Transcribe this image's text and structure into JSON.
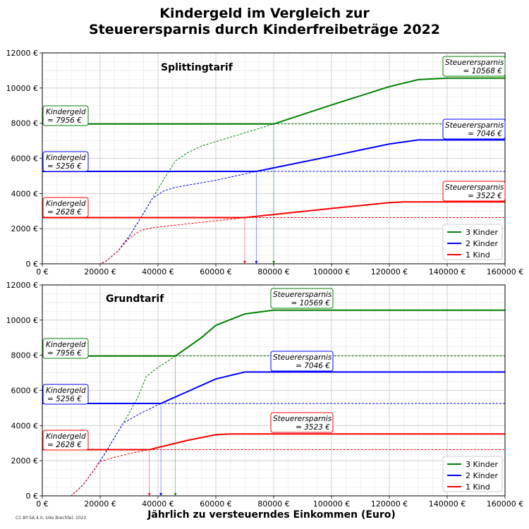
{
  "title_line1": "Kindergeld im Vergleich zur",
  "title_line2": "Steuerersparnis durch Kinderfreibeträge 2022",
  "xlabel": "Jährlich zu versteuerndes Einkommen (Euro)",
  "credit": "CC BY-SA 4.0, Udo Brechtel, 2022",
  "colors": {
    "3 Kinder": "#008000",
    "2 Kinder": "#0000ff",
    "1 Kind": "#ff0000"
  },
  "chart_data": [
    {
      "type": "line",
      "subtitle": "Splittingtarif",
      "xlim": [
        0,
        160000
      ],
      "ylim": [
        0,
        12000
      ],
      "xticks": [
        0,
        20000,
        40000,
        60000,
        80000,
        100000,
        120000,
        140000,
        160000
      ],
      "yticks": [
        0,
        2000,
        4000,
        6000,
        8000,
        10000,
        12000
      ],
      "tick_unit": "€",
      "grid": true,
      "legend_position": "bottom-right",
      "series": [
        {
          "name": "3 Kinder",
          "kindergeld": 7956,
          "max_savings": 10568,
          "crossover": 80000,
          "points": [
            [
              0,
              0
            ],
            [
              20000,
              0
            ],
            [
              22000,
              150
            ],
            [
              26000,
              700
            ],
            [
              30000,
              1550
            ],
            [
              34000,
              2600
            ],
            [
              38000,
              3700
            ],
            [
              42000,
              4800
            ],
            [
              46000,
              5850
            ],
            [
              50000,
              6300
            ],
            [
              55000,
              6700
            ],
            [
              60000,
              6950
            ],
            [
              70000,
              7450
            ],
            [
              80000,
              7956
            ],
            [
              100000,
              9040
            ],
            [
              120000,
              10080
            ],
            [
              130000,
              10480
            ],
            [
              140000,
              10568
            ],
            [
              160000,
              10568
            ]
          ]
        },
        {
          "name": "2 Kinder",
          "kindergeld": 5256,
          "max_savings": 7046,
          "crossover": 74000,
          "points": [
            [
              0,
              0
            ],
            [
              20000,
              0
            ],
            [
              22000,
              150
            ],
            [
              26000,
              700
            ],
            [
              30000,
              1550
            ],
            [
              34000,
              2600
            ],
            [
              38000,
              3700
            ],
            [
              42000,
              4150
            ],
            [
              46000,
              4350
            ],
            [
              60000,
              4750
            ],
            [
              74000,
              5256
            ],
            [
              100000,
              6130
            ],
            [
              120000,
              6820
            ],
            [
              130000,
              7046
            ],
            [
              160000,
              7046
            ]
          ]
        },
        {
          "name": "1 Kind",
          "kindergeld": 2628,
          "max_savings": 3522,
          "crossover": 70000,
          "points": [
            [
              0,
              0
            ],
            [
              20000,
              0
            ],
            [
              22000,
              150
            ],
            [
              26000,
              700
            ],
            [
              30000,
              1450
            ],
            [
              34000,
              1900
            ],
            [
              38000,
              2050
            ],
            [
              46000,
              2200
            ],
            [
              60000,
              2450
            ],
            [
              70000,
              2628
            ],
            [
              100000,
              3150
            ],
            [
              120000,
              3480
            ],
            [
              125000,
              3522
            ],
            [
              160000,
              3522
            ]
          ]
        }
      ],
      "labels": {
        "kindergeld": [
          "Kindergeld",
          "= 7956 €",
          "= 5256 €",
          "= 2628 €"
        ],
        "savings": [
          "Steuerersparnis",
          "= 10568 €",
          "= 7046 €",
          "= 3522 €"
        ]
      }
    },
    {
      "type": "line",
      "subtitle": "Grundtarif",
      "xlim": [
        0,
        160000
      ],
      "ylim": [
        0,
        12000
      ],
      "xticks": [
        0,
        20000,
        40000,
        60000,
        80000,
        100000,
        120000,
        140000,
        160000
      ],
      "yticks": [
        0,
        2000,
        4000,
        6000,
        8000,
        10000,
        12000
      ],
      "tick_unit": "€",
      "grid": true,
      "legend_position": "bottom-right",
      "series": [
        {
          "name": "3 Kinder",
          "kindergeld": 7956,
          "max_savings": 10569,
          "crossover": 46000,
          "points": [
            [
              0,
              0
            ],
            [
              10000,
              0
            ],
            [
              14000,
              600
            ],
            [
              18000,
              1500
            ],
            [
              22000,
              2500
            ],
            [
              26000,
              3600
            ],
            [
              30000,
              4700
            ],
            [
              33000,
              5600
            ],
            [
              36000,
              6800
            ],
            [
              40000,
              7300
            ],
            [
              46000,
              7956
            ],
            [
              55000,
              9000
            ],
            [
              60000,
              9700
            ],
            [
              70000,
              10350
            ],
            [
              80000,
              10569
            ],
            [
              160000,
              10569
            ]
          ]
        },
        {
          "name": "2 Kinder",
          "kindergeld": 5256,
          "max_savings": 7046,
          "crossover": 41000,
          "points": [
            [
              0,
              0
            ],
            [
              10000,
              0
            ],
            [
              14000,
              600
            ],
            [
              18000,
              1500
            ],
            [
              22000,
              2500
            ],
            [
              26000,
              3600
            ],
            [
              28000,
              4150
            ],
            [
              34000,
              4700
            ],
            [
              41000,
              5256
            ],
            [
              60000,
              6650
            ],
            [
              70000,
              7046
            ],
            [
              160000,
              7046
            ]
          ]
        },
        {
          "name": "1 Kind",
          "kindergeld": 2628,
          "max_savings": 3523,
          "crossover": 37000,
          "points": [
            [
              0,
              0
            ],
            [
              10000,
              0
            ],
            [
              14000,
              600
            ],
            [
              18000,
              1500
            ],
            [
              20000,
              1950
            ],
            [
              24000,
              2150
            ],
            [
              30000,
              2400
            ],
            [
              37000,
              2628
            ],
            [
              50000,
              3150
            ],
            [
              60000,
              3480
            ],
            [
              65000,
              3523
            ],
            [
              160000,
              3523
            ]
          ]
        }
      ],
      "labels": {
        "kindergeld": [
          "Kindergeld",
          "= 7956 €",
          "= 5256 €",
          "= 2628 €"
        ],
        "savings": [
          "Steuerersparnis",
          "= 10569 €",
          "= 7046 €",
          "= 3523 €"
        ]
      }
    }
  ]
}
